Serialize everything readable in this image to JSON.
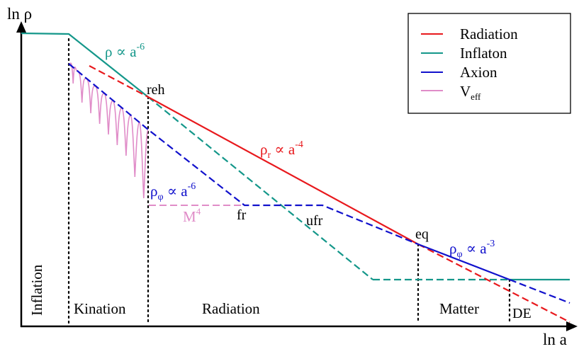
{
  "axes": {
    "y_label": "ln ρ",
    "x_label": "ln a"
  },
  "legend": {
    "items": [
      {
        "label": "Radiation",
        "color": "#e8191d"
      },
      {
        "label": "Inflaton",
        "color": "#14978a"
      },
      {
        "label": "Axion",
        "color": "#1111cc"
      },
      {
        "label": "V",
        "sub": "eff",
        "color": "#e08cc8"
      }
    ]
  },
  "colors": {
    "radiation": "#e8191d",
    "inflaton": "#14978a",
    "axion": "#1111cc",
    "veff": "#e08cc8",
    "axis": "#000000"
  },
  "annotations": {
    "inflaton_scaling": {
      "base": "ρ ∝ a",
      "sup": "-6"
    },
    "radiation_scaling": {
      "base": "ρ",
      "sub": "r",
      "mid": " ∝ a",
      "sup": "-4"
    },
    "axion_kination_scaling": {
      "base": "ρ",
      "sub": "φ",
      "mid": " ∝ a",
      "sup": "-6"
    },
    "axion_matter_scaling": {
      "base": "ρ",
      "sub": "φ",
      "mid": " ∝ a",
      "sup": "-3"
    },
    "potential_scale": {
      "base": "M",
      "sup": "4"
    }
  },
  "markers": {
    "reh": "reh",
    "fr": "fr",
    "ufr": "ufr",
    "eq": "eq",
    "de": "DE"
  },
  "eras": {
    "inflation": "Inflation",
    "kination": "Kination",
    "radiation": "Radiation",
    "matter": "Matter"
  }
}
